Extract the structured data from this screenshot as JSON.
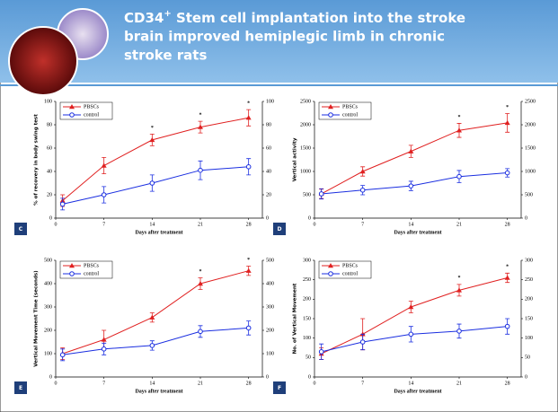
{
  "slide": {
    "title_parts": [
      "CD34",
      "+",
      " Stem cell implantation into the stroke",
      "brain improved hemiplegic  limb in chronic",
      "stroke rats"
    ]
  },
  "chart_data": [
    {
      "type": "line",
      "panel": "C",
      "xlabel": "Days after treatment",
      "ylabel": "% of recovery in body swing test",
      "xlim": [
        0,
        30
      ],
      "xticks": [
        0,
        7,
        14,
        21,
        28
      ],
      "ylim": [
        0,
        100
      ],
      "yticks": [
        0,
        20,
        40,
        60,
        80,
        100
      ],
      "y2lim": [
        0,
        100
      ],
      "y2ticks": [
        0,
        20,
        40,
        60,
        80,
        100
      ],
      "x": [
        1,
        7,
        14,
        21,
        28
      ],
      "series": [
        {
          "name": "PBSCs",
          "color": "#e02020",
          "values": [
            15,
            45,
            67,
            78,
            86
          ],
          "errors": [
            5,
            7,
            5,
            5,
            7
          ]
        },
        {
          "name": "control",
          "color": "#1a2ee0",
          "values": [
            12,
            20,
            30,
            41,
            44
          ],
          "errors": [
            5,
            7,
            7,
            8,
            7
          ]
        }
      ],
      "annotations": [
        {
          "x": 14,
          "text": "*"
        },
        {
          "x": 21,
          "text": "*"
        },
        {
          "x": 28,
          "text": "*"
        }
      ]
    },
    {
      "type": "line",
      "panel": "D",
      "xlabel": "Days after treatment",
      "ylabel": "Vertical activity",
      "xlim": [
        0,
        30
      ],
      "xticks": [
        0,
        7,
        14,
        21,
        28
      ],
      "ylim": [
        0,
        2500
      ],
      "yticks": [
        0,
        500,
        1000,
        1500,
        2000,
        2500
      ],
      "y2lim": [
        0,
        2500
      ],
      "y2ticks": [
        0,
        500,
        1000,
        1500,
        2000,
        2500
      ],
      "x": [
        1,
        7,
        14,
        21,
        28
      ],
      "series": [
        {
          "name": "PBSCs",
          "color": "#e02020",
          "values": [
            520,
            1000,
            1430,
            1880,
            2040
          ],
          "errors": [
            100,
            100,
            130,
            150,
            200
          ]
        },
        {
          "name": "control",
          "color": "#1a2ee0",
          "values": [
            520,
            600,
            690,
            890,
            970
          ],
          "errors": [
            110,
            100,
            100,
            130,
            90
          ]
        }
      ],
      "annotations": [
        {
          "x": 21,
          "text": "*"
        },
        {
          "x": 28,
          "text": "*"
        }
      ]
    },
    {
      "type": "line",
      "panel": "E",
      "xlabel": "Days after treatment",
      "ylabel": "Vertical Movement Time (seconds)",
      "xlim": [
        0,
        30
      ],
      "xticks": [
        0,
        7,
        14,
        21,
        28
      ],
      "ylim": [
        0,
        500
      ],
      "yticks": [
        0,
        100,
        200,
        300,
        400,
        500
      ],
      "y2lim": [
        0,
        500
      ],
      "y2ticks": [
        0,
        100,
        200,
        300,
        400,
        500
      ],
      "x": [
        1,
        7,
        14,
        21,
        28
      ],
      "series": [
        {
          "name": "PBSCs",
          "color": "#e02020",
          "values": [
            100,
            160,
            255,
            400,
            455
          ],
          "errors": [
            25,
            40,
            20,
            25,
            20
          ]
        },
        {
          "name": "control",
          "color": "#1a2ee0",
          "values": [
            95,
            120,
            135,
            195,
            210
          ],
          "errors": [
            25,
            25,
            20,
            25,
            30
          ]
        }
      ],
      "annotations": [
        {
          "x": 21,
          "text": "*"
        },
        {
          "x": 28,
          "text": "*"
        }
      ]
    },
    {
      "type": "line",
      "panel": "F",
      "xlabel": "Days after treatment",
      "ylabel": "No. of Vertical Movement",
      "xlim": [
        0,
        30
      ],
      "xticks": [
        0,
        7,
        14,
        21,
        28
      ],
      "ylim": [
        0,
        300
      ],
      "yticks": [
        0,
        50,
        100,
        150,
        200,
        250,
        300
      ],
      "y2lim": [
        0,
        300
      ],
      "y2ticks": [
        0,
        50,
        100,
        150,
        200,
        250,
        300
      ],
      "x": [
        1,
        7,
        14,
        21,
        28
      ],
      "series": [
        {
          "name": "PBSCs",
          "color": "#e02020",
          "values": [
            60,
            110,
            180,
            223,
            255
          ],
          "errors": [
            15,
            40,
            15,
            15,
            12
          ]
        },
        {
          "name": "control",
          "color": "#1a2ee0",
          "values": [
            65,
            90,
            110,
            118,
            130
          ],
          "errors": [
            20,
            20,
            20,
            18,
            20
          ]
        }
      ],
      "annotations": [
        {
          "x": 21,
          "text": "*"
        },
        {
          "x": 28,
          "text": "*"
        }
      ]
    }
  ]
}
